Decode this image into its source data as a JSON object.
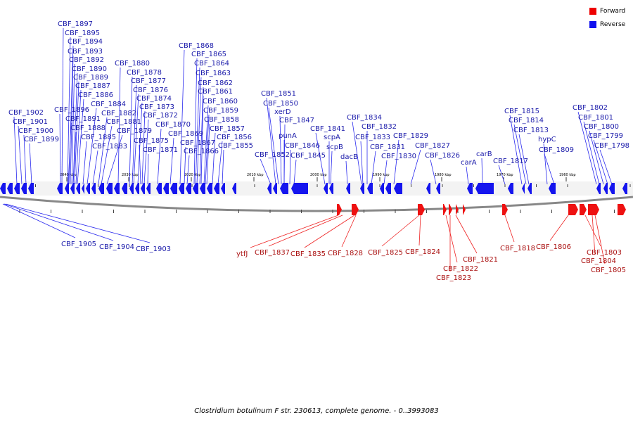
{
  "caption": "Clostridium botulinum F str. 230613, complete genome. - 0..3993083",
  "legend": [
    {
      "label": "Forward",
      "color": "#ee0000"
    },
    {
      "label": "Reverse",
      "color": "#1010ee"
    }
  ],
  "ticks": [
    "2040 kbp",
    "2030 kbp",
    "2020 kbp",
    "2010 kbp",
    "2000 kbp",
    "1990 kbp",
    "1980 kbp",
    "1970 kbp",
    "1960 kbp"
  ],
  "reverse_genes": [
    "CBF_1902",
    "CBF_1901",
    "CBF_1900",
    "CBF_1899",
    "CBF_1897",
    "CBF_1895",
    "CBF_1894",
    "CBF_1893",
    "CBF_1892",
    "CBF_1890",
    "CBF_1889",
    "CBF_1887",
    "CBF_1886",
    "CBF_1896",
    "CBF_1891",
    "CBF_1888",
    "CBF_1885",
    "CBF_1884",
    "CBF_1883",
    "CBF_1882",
    "CBF_1881",
    "CBF_1880",
    "CBF_1879",
    "CBF_1878",
    "CBF_1877",
    "CBF_1876",
    "CBF_1875",
    "CBF_1874",
    "CBF_1873",
    "CBF_1872",
    "CBF_1871",
    "CBF_1870",
    "CBF_1869",
    "CBF_1868",
    "CBF_1867",
    "CBF_1866",
    "CBF_1865",
    "CBF_1864",
    "CBF_1863",
    "CBF_1862",
    "CBF_1861",
    "CBF_1860",
    "CBF_1859",
    "CBF_1858",
    "CBF_1857",
    "CBF_1856",
    "CBF_1855",
    "CBF_1852",
    "CBF_1851",
    "CBF_1850",
    "xerD",
    "CBF_1847",
    "punA",
    "CBF_1846",
    "CBF_1845",
    "CBF_1841",
    "scpA",
    "scpB",
    "dacB",
    "CBF_1834",
    "CBF_1833",
    "CBF_1832",
    "CBF_1831",
    "CBF_1830",
    "CBF_1829",
    "CBF_1827",
    "CBF_1826",
    "carA",
    "carB",
    "CBF_1817",
    "CBF_1815",
    "CBF_1814",
    "CBF_1813",
    "hypC",
    "CBF_1809",
    "CBF_1802",
    "CBF_1801",
    "CBF_1800",
    "CBF_1799",
    "CBF_1798",
    "CBF_1905",
    "CBF_1904",
    "CBF_1903"
  ],
  "forward_genes": [
    "ytfJ",
    "CBF_1837",
    "CBF_1835",
    "CBF_1828",
    "CBF_1825",
    "CBF_1824",
    "CBF_1821",
    "CBF_1822",
    "CBF_1823",
    "CBF_1818",
    "CBF_1806",
    "CBF_1803",
    "CBF_1804",
    "CBF_1805"
  ]
}
